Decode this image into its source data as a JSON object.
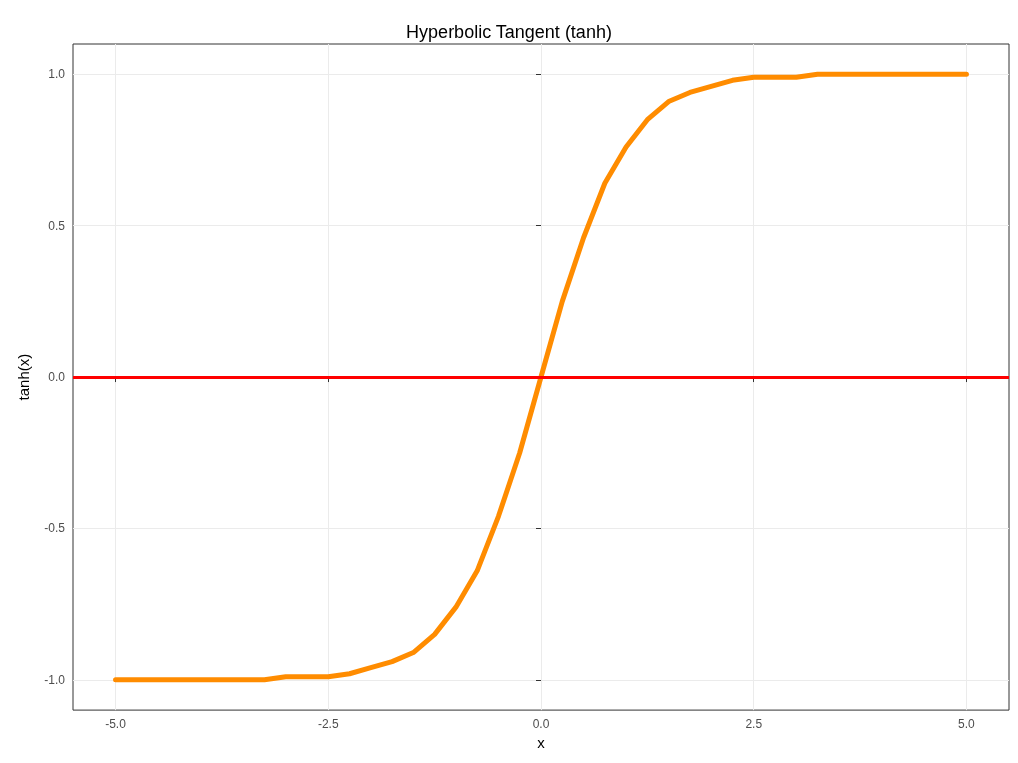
{
  "chart_data": {
    "type": "line",
    "title": "Hyperbolic Tangent (tanh)",
    "xlabel": "x",
    "ylabel": "tanh(x)",
    "x": [
      -5,
      -4.75,
      -4.5,
      -4.25,
      -4,
      -3.75,
      -3.5,
      -3.25,
      -3,
      -2.75,
      -2.5,
      -2.25,
      -2,
      -1.75,
      -1.5,
      -1.25,
      -1,
      -0.75,
      -0.5,
      -0.25,
      0,
      0.25,
      0.5,
      0.75,
      1,
      1.25,
      1.5,
      1.75,
      2,
      2.25,
      2.5,
      2.75,
      3,
      3.25,
      3.5,
      3.75,
      4,
      4.25,
      4.5,
      4.75,
      5
    ],
    "series": [
      {
        "color": "#ff8c00",
        "values": [
          -1,
          -1,
          -1,
          -1,
          -1,
          -1,
          -1,
          -1,
          -0.99,
          -0.99,
          -0.99,
          -0.98,
          -0.96,
          -0.94,
          -0.91,
          -0.85,
          -0.76,
          -0.64,
          -0.46,
          -0.25,
          0,
          0.25,
          0.46,
          0.64,
          0.76,
          0.85,
          0.91,
          0.94,
          0.96,
          0.98,
          0.99,
          0.99,
          0.99,
          1,
          1,
          1,
          1,
          1,
          1,
          1,
          1
        ]
      }
    ],
    "xlim": [
      -5.5,
      5.5
    ],
    "ylim": [
      -1.1,
      1.1
    ],
    "xticks": [
      {
        "value": -5,
        "label": "-5.0"
      },
      {
        "value": -2.5,
        "label": "-2.5"
      },
      {
        "value": 0,
        "label": "0.0"
      },
      {
        "value": 2.5,
        "label": "2.5"
      },
      {
        "value": 5,
        "label": "5.0"
      }
    ],
    "yticks": [
      {
        "value": -1,
        "label": "-1.0"
      },
      {
        "value": -0.5,
        "label": "-0.5"
      },
      {
        "value": 0,
        "label": "0.0"
      },
      {
        "value": 0.5,
        "label": "0.5"
      },
      {
        "value": 1,
        "label": "1.0"
      }
    ],
    "ref_lines": [
      {
        "axis": "y",
        "value": 0,
        "color": "#ff0000"
      }
    ],
    "grid": true,
    "marker": "none",
    "line_style": "solid"
  }
}
